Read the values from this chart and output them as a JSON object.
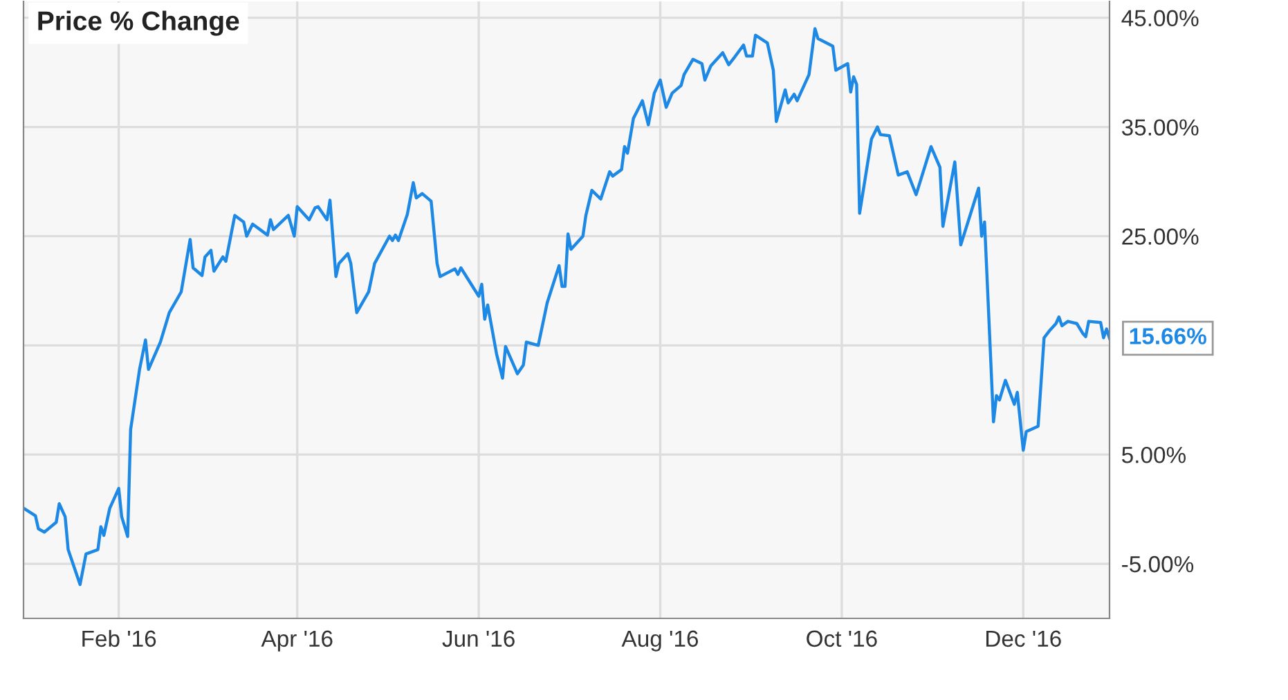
{
  "chart_data": {
    "type": "line",
    "title": "Price % Change",
    "x": [
      "2015-12-31",
      "2016-01-04",
      "2016-01-05",
      "2016-01-07",
      "2016-01-11",
      "2016-01-12",
      "2016-01-14",
      "2016-01-15",
      "2016-01-19",
      "2016-01-21",
      "2016-01-25",
      "2016-01-26",
      "2016-01-27",
      "2016-01-29",
      "2016-02-01",
      "2016-02-02",
      "2016-02-04",
      "2016-02-05",
      "2016-02-08",
      "2016-02-10",
      "2016-02-11",
      "2016-02-15",
      "2016-02-18",
      "2016-02-22",
      "2016-02-25",
      "2016-02-26",
      "2016-02-29",
      "2016-03-01",
      "2016-03-03",
      "2016-03-04",
      "2016-03-07",
      "2016-03-08",
      "2016-03-11",
      "2016-03-14",
      "2016-03-15",
      "2016-03-17",
      "2016-03-22",
      "2016-03-23",
      "2016-03-24",
      "2016-03-29",
      "2016-03-31",
      "2016-04-01",
      "2016-04-05",
      "2016-04-07",
      "2016-04-08",
      "2016-04-11",
      "2016-04-12",
      "2016-04-14",
      "2016-04-15",
      "2016-04-18",
      "2016-04-19",
      "2016-04-21",
      "2016-04-25",
      "2016-04-27",
      "2016-05-02",
      "2016-05-03",
      "2016-05-04",
      "2016-05-05",
      "2016-05-08",
      "2016-05-10",
      "2016-05-11",
      "2016-05-13",
      "2016-05-16",
      "2016-05-18",
      "2016-05-19",
      "2016-05-24",
      "2016-05-25",
      "2016-05-26",
      "2016-06-01",
      "2016-06-02",
      "2016-06-03",
      "2016-06-04",
      "2016-06-07",
      "2016-06-09",
      "2016-06-10",
      "2016-06-14",
      "2016-06-16",
      "2016-06-17",
      "2016-06-21",
      "2016-06-24",
      "2016-06-28",
      "2016-06-29",
      "2016-06-30",
      "2016-07-01",
      "2016-07-02",
      "2016-07-06",
      "2016-07-07",
      "2016-07-09",
      "2016-07-12",
      "2016-07-15",
      "2016-07-16",
      "2016-07-19",
      "2016-07-20",
      "2016-07-21",
      "2016-07-23",
      "2016-07-26",
      "2016-07-28",
      "2016-07-30",
      "2016-08-01",
      "2016-08-03",
      "2016-08-05",
      "2016-08-08",
      "2016-08-09",
      "2016-08-12",
      "2016-08-15",
      "2016-08-16",
      "2016-08-18",
      "2016-08-22",
      "2016-08-24",
      "2016-08-26",
      "2016-08-29",
      "2016-08-30",
      "2016-09-01",
      "2016-09-02",
      "2016-09-06",
      "2016-09-08",
      "2016-09-09",
      "2016-09-12",
      "2016-09-13",
      "2016-09-15",
      "2016-09-16",
      "2016-09-20",
      "2016-09-22",
      "2016-09-23",
      "2016-09-28",
      "2016-09-29",
      "2016-10-03",
      "2016-10-04",
      "2016-10-05",
      "2016-10-06",
      "2016-10-07",
      "2016-10-11",
      "2016-10-13",
      "2016-10-14",
      "2016-10-17",
      "2016-10-20",
      "2016-10-23",
      "2016-10-26",
      "2016-10-31",
      "2016-11-03",
      "2016-11-04",
      "2016-11-08",
      "2016-11-10",
      "2016-11-16",
      "2016-11-17",
      "2016-11-18",
      "2016-11-21",
      "2016-11-22",
      "2016-11-23",
      "2016-11-25",
      "2016-11-28",
      "2016-11-29",
      "2016-12-01",
      "2016-12-02",
      "2016-12-06",
      "2016-12-08",
      "2016-12-10",
      "2016-12-12",
      "2016-12-13",
      "2016-12-14",
      "2016-12-16",
      "2016-12-19",
      "2016-12-21",
      "2016-12-22",
      "2016-12-23",
      "2016-12-27",
      "2016-12-28",
      "2016-12-29",
      "2016-12-30"
    ],
    "series": [
      {
        "color": "#1e88e5",
        "values": [
          0.1,
          -0.6,
          -1.8,
          -2.1,
          -1.2,
          0.5,
          -0.7,
          -3.7,
          -6.9,
          -4.1,
          -3.7,
          -1.6,
          -2.4,
          0.1,
          1.9,
          -0.7,
          -2.5,
          7.3,
          12.8,
          15.5,
          12.8,
          15.3,
          18.0,
          19.9,
          24.7,
          22.1,
          21.4,
          23.1,
          23.7,
          21.8,
          23.1,
          22.7,
          26.9,
          26.3,
          25.0,
          26.1,
          25.1,
          26.5,
          25.6,
          26.9,
          25.0,
          27.7,
          26.5,
          27.6,
          27.7,
          26.5,
          28.3,
          21.3,
          22.5,
          23.4,
          22.5,
          18.0,
          19.9,
          22.5,
          25.0,
          24.6,
          25.1,
          24.6,
          27.0,
          29.9,
          28.5,
          28.9,
          28.2,
          22.5,
          21.3,
          22.0,
          21.5,
          22.1,
          19.5,
          20.6,
          17.4,
          18.7,
          14.2,
          12.0,
          14.9,
          12.4,
          13.2,
          15.3,
          15.0,
          18.9,
          22.3,
          20.4,
          20.4,
          25.2,
          23.8,
          25.0,
          26.9,
          29.2,
          28.4,
          30.9,
          30.5,
          31.1,
          33.2,
          32.6,
          35.8,
          37.4,
          35.2,
          38.1,
          39.3,
          36.8,
          38.1,
          38.8,
          39.8,
          41.2,
          40.8,
          39.3,
          40.6,
          41.8,
          40.7,
          41.4,
          42.5,
          41.5,
          41.5,
          43.4,
          42.7,
          40.2,
          35.5,
          38.4,
          37.2,
          38.0,
          37.4,
          39.8,
          44.0,
          43.1,
          42.4,
          40.2,
          40.8,
          38.2,
          39.6,
          38.9,
          27.1,
          33.9,
          35.0,
          34.3,
          34.2,
          30.6,
          30.9,
          28.8,
          33.2,
          31.3,
          25.9,
          31.8,
          24.2,
          29.4,
          25.0,
          26.3,
          8.0,
          10.4,
          10.0,
          11.8,
          9.6,
          10.7,
          5.4,
          7.1,
          7.6,
          15.7,
          16.4,
          17.0,
          17.6,
          16.8,
          17.2,
          17.0,
          16.1,
          15.8,
          17.2,
          17.1,
          15.7,
          16.5,
          15.66
        ]
      }
    ],
    "xlim": [
      "2015-12-31",
      "2016-12-30"
    ],
    "xticks": [
      {
        "value": "2016-02-01",
        "label": "Feb '16"
      },
      {
        "value": "2016-04-01",
        "label": "Apr '16"
      },
      {
        "value": "2016-06-01",
        "label": "Jun '16"
      },
      {
        "value": "2016-08-01",
        "label": "Aug '16"
      },
      {
        "value": "2016-10-01",
        "label": "Oct '16"
      },
      {
        "value": "2016-12-01",
        "label": "Dec '16"
      }
    ],
    "ylim": [
      -10,
      46.5
    ],
    "yticks": [
      {
        "value": -5,
        "label": "-5.00%"
      },
      {
        "value": 5,
        "label": "5.00%"
      },
      {
        "value": 15,
        "label": null
      },
      {
        "value": 25,
        "label": "25.00%"
      },
      {
        "value": 35,
        "label": "35.00%"
      },
      {
        "value": 45,
        "label": "45.00%"
      }
    ],
    "annotations": [
      {
        "text": "15.66%",
        "x": "2016-12-30",
        "y": 15.66
      }
    ],
    "grid": true,
    "marker": "none",
    "line_style": "solid"
  }
}
